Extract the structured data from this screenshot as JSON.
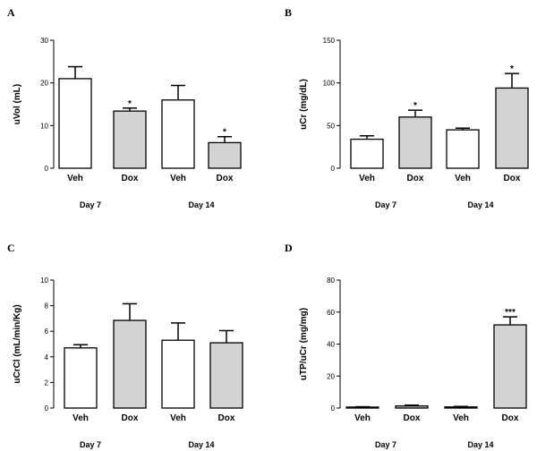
{
  "chart_data": [
    {
      "type": "bar",
      "panel": "A",
      "ylabel": "uVol (mL)",
      "ylim": [
        0,
        30
      ],
      "yticks": [
        0,
        10,
        20,
        30
      ],
      "categories": [
        "Veh",
        "Dox",
        "Veh",
        "Dox"
      ],
      "groups": [
        "Day 7",
        "Day 14"
      ],
      "values": [
        21.0,
        13.4,
        16.0,
        6.0
      ],
      "errors": [
        2.8,
        0.7,
        3.4,
        1.4
      ],
      "significance": [
        "",
        "*",
        "",
        "*"
      ],
      "colors": [
        "#ffffff",
        "#d3d3d3",
        "#ffffff",
        "#d3d3d3"
      ]
    },
    {
      "type": "bar",
      "panel": "B",
      "ylabel": "uCr (mg/dL)",
      "ylim": [
        0,
        150
      ],
      "yticks": [
        0,
        50,
        100,
        150
      ],
      "categories": [
        "Veh",
        "Dox",
        "Veh",
        "Dox"
      ],
      "groups": [
        "Day 7",
        "Day 14"
      ],
      "values": [
        34,
        60,
        45,
        94
      ],
      "errors": [
        4,
        8,
        2,
        17
      ],
      "significance": [
        "",
        "*",
        "",
        "*"
      ],
      "colors": [
        "#ffffff",
        "#d3d3d3",
        "#ffffff",
        "#d3d3d3"
      ]
    },
    {
      "type": "bar",
      "panel": "C",
      "ylabel": "uCrCl (mL/min/Kg)",
      "ylim": [
        0,
        10
      ],
      "yticks": [
        0,
        2,
        4,
        6,
        8,
        10
      ],
      "categories": [
        "Veh",
        "Dox",
        "Veh",
        "Dox"
      ],
      "groups": [
        "Day 7",
        "Day 14"
      ],
      "values": [
        4.7,
        6.85,
        5.3,
        5.1
      ],
      "errors": [
        0.25,
        1.3,
        1.35,
        0.95
      ],
      "significance": [
        "",
        "",
        "",
        ""
      ],
      "colors": [
        "#ffffff",
        "#d3d3d3",
        "#ffffff",
        "#d3d3d3"
      ]
    },
    {
      "type": "bar",
      "panel": "D",
      "ylabel": "uTP/uCr (mg/mg)",
      "ylim": [
        0,
        80
      ],
      "yticks": [
        0,
        20,
        40,
        60,
        80
      ],
      "categories": [
        "Veh",
        "Dox",
        "Veh",
        "Dox"
      ],
      "groups": [
        "Day 7",
        "Day 14"
      ],
      "values": [
        0.6,
        1.3,
        0.7,
        52
      ],
      "errors": [
        0.2,
        0.5,
        0.3,
        5
      ],
      "significance": [
        "",
        "",
        "",
        "***"
      ],
      "colors": [
        "#ffffff",
        "#d3d3d3",
        "#ffffff",
        "#d3d3d3"
      ]
    }
  ]
}
